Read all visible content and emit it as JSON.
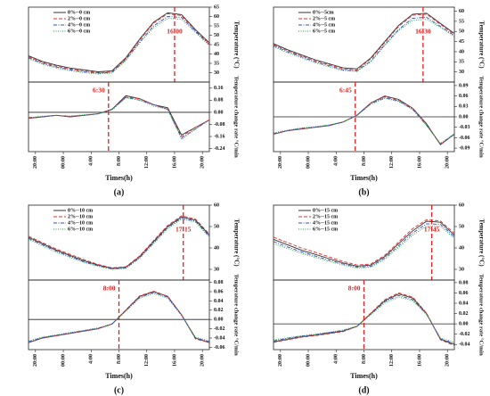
{
  "chart_data": [
    {
      "type": "line",
      "xlim": [
        -1,
        25
      ],
      "x": [
        -1,
        1,
        3,
        5,
        7,
        9,
        11,
        13,
        15,
        17,
        19,
        21,
        23,
        25
      ],
      "ylim": [
        25,
        65
      ],
      "yticks": [
        30,
        35,
        40,
        45,
        50,
        55,
        60,
        65
      ],
      "ylabel": "Temperature (°C)",
      "annotations": [
        {
          "text": "16:00",
          "x": 20
        }
      ],
      "series": [
        {
          "name": "0%--0 cm",
          "color": "#333333",
          "dash": "solid",
          "values": [
            39,
            36,
            34,
            32.5,
            31.5,
            30.5,
            31,
            38,
            48,
            57,
            62,
            61,
            53,
            46
          ]
        },
        {
          "name": "2%--0 cm",
          "color": "#e03030",
          "dash": "dashed",
          "values": [
            38.5,
            35.5,
            33.5,
            32,
            31,
            30,
            30.5,
            37.5,
            47.5,
            56.5,
            61.5,
            60.5,
            52.5,
            45.5
          ]
        },
        {
          "name": "4%--0 cm",
          "color": "#3050c0",
          "dash": "dashdot",
          "values": [
            38,
            35,
            33,
            31.5,
            30.5,
            29.7,
            30.2,
            37,
            46.5,
            55,
            60,
            59.5,
            52,
            45
          ]
        },
        {
          "name": "6%--0 cm",
          "color": "#20a040",
          "dash": "dotted",
          "values": [
            37.5,
            34.5,
            32.5,
            31,
            30,
            29.3,
            29.8,
            36.5,
            46,
            54,
            59,
            58.5,
            51.5,
            44.5
          ]
        }
      ]
    },
    {
      "type": "line",
      "xlim": [
        -1,
        25
      ],
      "x": [
        -1,
        1,
        3,
        5,
        7,
        9,
        11,
        13,
        15,
        17,
        19,
        21,
        23,
        25
      ],
      "ylim": [
        -0.26,
        0.2
      ],
      "yticks": [
        -0.24,
        -0.16,
        -0.08,
        {
          "value": 0,
          "label": "0.00"
        },
        0.08,
        0.16
      ],
      "ylabel": "Temperature change rate °C/min",
      "xticks": [
        {
          "value": 0,
          "label": "20:00"
        },
        {
          "value": 4,
          "label": "00:00"
        },
        {
          "value": 8,
          "label": "4:00"
        },
        {
          "value": 12,
          "label": "8:00"
        },
        {
          "value": 16,
          "label": "12:00"
        },
        {
          "value": 20,
          "label": "16:00"
        },
        {
          "value": 24,
          "label": "20:00"
        }
      ],
      "xlabel": "Times(h)",
      "panel_label": "(a)",
      "annotations": [
        {
          "text": "6:30",
          "x": 10.5
        }
      ],
      "series": [
        {
          "color": "#333333",
          "dash": "solid",
          "values": [
            -0.04,
            -0.03,
            -0.02,
            -0.03,
            -0.02,
            -0.01,
            0.02,
            0.11,
            0.09,
            0.05,
            0.03,
            -0.15,
            -0.1,
            -0.05
          ]
        },
        {
          "color": "#e03030",
          "dash": "dashed",
          "values": [
            -0.04,
            -0.03,
            -0.02,
            -0.03,
            -0.02,
            -0.01,
            0.02,
            0.1,
            0.09,
            0.05,
            0.02,
            -0.16,
            -0.1,
            -0.05
          ]
        },
        {
          "color": "#3050c0",
          "dash": "dashdot",
          "values": [
            -0.035,
            -0.03,
            -0.02,
            -0.025,
            -0.02,
            -0.01,
            0.02,
            0.1,
            0.08,
            0.05,
            0.02,
            -0.17,
            -0.11,
            -0.05
          ]
        },
        {
          "color": "#20a040",
          "dash": "dotted",
          "values": [
            -0.035,
            -0.025,
            -0.02,
            -0.025,
            -0.015,
            -0.01,
            0.015,
            0.095,
            0.08,
            0.04,
            0.02,
            -0.18,
            -0.11,
            -0.05
          ]
        }
      ]
    },
    {
      "type": "line",
      "xlim": [
        -1,
        25
      ],
      "x": [
        -1,
        1,
        3,
        5,
        7,
        9,
        11,
        13,
        15,
        17,
        19,
        21,
        23,
        25
      ],
      "ylim": [
        25,
        62
      ],
      "yticks": [
        30,
        35,
        40,
        45,
        50,
        55,
        60
      ],
      "ylabel": "Temperature (°C)",
      "annotations": [
        {
          "text": "16:30",
          "x": 20.5
        }
      ],
      "series": [
        {
          "name": "0%--5cm",
          "color": "#333333",
          "dash": "solid",
          "values": [
            44,
            41,
            38.5,
            36,
            34,
            32,
            31.5,
            37,
            45,
            53,
            58.5,
            59,
            54,
            49
          ]
        },
        {
          "name": "2%--5 cm",
          "color": "#e03030",
          "dash": "dashed",
          "values": [
            43.5,
            40.5,
            38,
            35.5,
            33.5,
            31.5,
            31,
            36.5,
            44.5,
            52.5,
            58,
            58.5,
            53.5,
            48.5
          ]
        },
        {
          "name": "4%--5 cm",
          "color": "#3050c0",
          "dash": "dashdot",
          "values": [
            43,
            40,
            37.5,
            35,
            33,
            31,
            30.5,
            35.5,
            43.5,
            51,
            56.5,
            57,
            52.5,
            48
          ]
        },
        {
          "name": "6%--5 cm",
          "color": "#20a040",
          "dash": "dotted",
          "values": [
            42.5,
            39.5,
            37,
            34.5,
            32.5,
            30.7,
            30.2,
            35,
            43,
            50.5,
            55.5,
            56,
            52,
            47.5
          ]
        }
      ]
    },
    {
      "type": "line",
      "xlim": [
        -1,
        25
      ],
      "x": [
        -1,
        1,
        3,
        5,
        7,
        9,
        11,
        13,
        15,
        17,
        19,
        21,
        23,
        25
      ],
      "ylim": [
        -0.1,
        0.1
      ],
      "yticks": [
        -0.09,
        -0.06,
        -0.03,
        {
          "value": 0,
          "label": "0.00"
        },
        0.03,
        0.06,
        0.09
      ],
      "ylabel": "Temperature change rate °C/min",
      "xticks": [
        {
          "value": 0,
          "label": "20:00"
        },
        {
          "value": 4,
          "label": "00:00"
        },
        {
          "value": 8,
          "label": "4:00"
        },
        {
          "value": 12,
          "label": "8:00"
        },
        {
          "value": 16,
          "label": "12:00"
        },
        {
          "value": 20,
          "label": "16:00"
        },
        {
          "value": 24,
          "label": "20:00"
        }
      ],
      "xlabel": "Times(h)",
      "panel_label": "(b)",
      "annotations": [
        {
          "text": "6:45",
          "x": 10.75
        }
      ],
      "series": [
        {
          "color": "#333333",
          "dash": "solid",
          "values": [
            -0.05,
            -0.04,
            -0.035,
            -0.03,
            -0.025,
            -0.015,
            0.005,
            0.04,
            0.06,
            0.05,
            0.025,
            -0.02,
            -0.08,
            -0.05
          ]
        },
        {
          "color": "#e03030",
          "dash": "dashed",
          "values": [
            -0.05,
            -0.04,
            -0.035,
            -0.03,
            -0.025,
            -0.015,
            0.005,
            0.04,
            0.058,
            0.048,
            0.024,
            -0.022,
            -0.08,
            -0.05
          ]
        },
        {
          "color": "#3050c0",
          "dash": "dashdot",
          "values": [
            -0.048,
            -0.04,
            -0.033,
            -0.03,
            -0.024,
            -0.015,
            0.004,
            0.038,
            0.055,
            0.046,
            0.022,
            -0.024,
            -0.078,
            -0.05
          ]
        },
        {
          "color": "#20a040",
          "dash": "dotted",
          "values": [
            -0.046,
            -0.038,
            -0.032,
            -0.028,
            -0.023,
            -0.014,
            0.004,
            0.036,
            0.053,
            0.044,
            0.02,
            -0.025,
            -0.076,
            -0.048
          ]
        }
      ]
    },
    {
      "type": "line",
      "xlim": [
        -1,
        25
      ],
      "x": [
        -1,
        1,
        3,
        5,
        7,
        9,
        11,
        13,
        15,
        17,
        19,
        21,
        23,
        25
      ],
      "ylim": [
        25,
        60
      ],
      "yticks": [
        30,
        40,
        50,
        60
      ],
      "ylabel": "Temperature (°C)",
      "annotations": [
        {
          "text": "17:15",
          "x": 21.25
        }
      ],
      "series": [
        {
          "name": "0%--10 cm",
          "color": "#333333",
          "dash": "solid",
          "values": [
            45,
            42,
            39,
            36.5,
            34,
            32,
            30.5,
            31,
            36,
            43,
            50,
            54.5,
            53,
            46
          ]
        },
        {
          "name": "2%--10 cm",
          "color": "#e03030",
          "dash": "dashed",
          "values": [
            45.5,
            42.5,
            39.5,
            37,
            34.5,
            32.3,
            30.7,
            31.2,
            36.3,
            43.5,
            50.5,
            55,
            53.5,
            46.5
          ]
        },
        {
          "name": "4%--10 cm",
          "color": "#3050c0",
          "dash": "dashdot",
          "values": [
            44.5,
            41.5,
            38.5,
            36,
            33.5,
            31.7,
            30.2,
            30.7,
            35.5,
            42.5,
            49.5,
            54,
            52.5,
            45.5
          ]
        },
        {
          "name": "6%--10 cm",
          "color": "#20a040",
          "dash": "dotted",
          "values": [
            44,
            41,
            38,
            35.5,
            33.2,
            31.4,
            30,
            30.4,
            35.2,
            42,
            49,
            53.5,
            52,
            45
          ]
        }
      ]
    },
    {
      "type": "line",
      "xlim": [
        -1,
        25
      ],
      "x": [
        -1,
        1,
        3,
        5,
        7,
        9,
        11,
        13,
        15,
        17,
        19,
        21,
        23,
        25
      ],
      "ylim": [
        -0.065,
        0.085
      ],
      "yticks": [
        -0.06,
        -0.04,
        -0.02,
        {
          "value": 0,
          "label": "0.00"
        },
        0.02,
        0.04,
        0.06,
        0.08
      ],
      "ylabel": "Temperature change rate °C/min",
      "xticks": [
        {
          "value": 0,
          "label": "20:00"
        },
        {
          "value": 4,
          "label": "00:00"
        },
        {
          "value": 8,
          "label": "4:00"
        },
        {
          "value": 12,
          "label": "8:00"
        },
        {
          "value": 16,
          "label": "12:00"
        },
        {
          "value": 20,
          "label": "16:00"
        },
        {
          "value": 24,
          "label": "20:00"
        }
      ],
      "xlabel": "Times(h)",
      "panel_label": "(c)",
      "annotations": [
        {
          "text": "8:00",
          "x": 12
        }
      ],
      "series": [
        {
          "color": "#333333",
          "dash": "solid",
          "values": [
            -0.05,
            -0.04,
            -0.035,
            -0.03,
            -0.025,
            -0.02,
            -0.01,
            0.02,
            0.05,
            0.06,
            0.05,
            0.01,
            -0.04,
            -0.05
          ]
        },
        {
          "color": "#e03030",
          "dash": "dashed",
          "values": [
            -0.05,
            -0.04,
            -0.035,
            -0.03,
            -0.025,
            -0.02,
            -0.01,
            0.021,
            0.051,
            0.061,
            0.05,
            0.01,
            -0.042,
            -0.05
          ]
        },
        {
          "color": "#3050c0",
          "dash": "dashdot",
          "values": [
            -0.048,
            -0.039,
            -0.034,
            -0.029,
            -0.024,
            -0.019,
            -0.01,
            0.019,
            0.048,
            0.058,
            0.048,
            0.009,
            -0.04,
            -0.048
          ]
        },
        {
          "color": "#20a040",
          "dash": "dotted",
          "values": [
            -0.046,
            -0.038,
            -0.033,
            -0.028,
            -0.023,
            -0.018,
            -0.009,
            0.018,
            0.046,
            0.056,
            0.046,
            0.008,
            -0.038,
            -0.046
          ]
        }
      ]
    },
    {
      "type": "line",
      "xlim": [
        -1,
        25
      ],
      "x": [
        -1,
        1,
        3,
        5,
        7,
        9,
        11,
        13,
        15,
        17,
        19,
        21,
        23,
        25
      ],
      "ylim": [
        25,
        60
      ],
      "yticks": [
        30,
        40,
        50,
        60
      ],
      "ylabel": "Temperature (°C)",
      "annotations": [
        {
          "text": "17:45",
          "x": 21.75
        }
      ],
      "series": [
        {
          "name": "0%--15 cm",
          "color": "#333333",
          "dash": "solid",
          "values": [
            44,
            41.5,
            39,
            37,
            35,
            33,
            31.5,
            32,
            36,
            42,
            48,
            52.5,
            52,
            46
          ]
        },
        {
          "name": "2%--15 cm",
          "color": "#e03030",
          "dash": "dashed",
          "values": [
            45,
            42.5,
            40,
            38,
            35.8,
            33.7,
            32,
            32.5,
            36.6,
            42.8,
            49,
            53.2,
            52.6,
            46.8
          ]
        },
        {
          "name": "4%--15 cm",
          "color": "#3050c0",
          "dash": "dashdot",
          "values": [
            43,
            40.5,
            38.2,
            36.2,
            34.3,
            32.5,
            31,
            31.4,
            35.3,
            41,
            47,
            51.3,
            51,
            45.2
          ]
        },
        {
          "name": "6%--15 cm",
          "color": "#20a040",
          "dash": "dotted",
          "values": [
            42,
            39.8,
            37.5,
            35.6,
            33.7,
            32,
            30.6,
            31,
            34.7,
            40.2,
            46,
            50.3,
            50.2,
            44.5
          ]
        }
      ]
    },
    {
      "type": "line",
      "xlim": [
        -1,
        25
      ],
      "x": [
        -1,
        1,
        3,
        5,
        7,
        9,
        11,
        13,
        15,
        17,
        19,
        21,
        23,
        25
      ],
      "ylim": [
        -0.05,
        0.085
      ],
      "yticks": [
        -0.04,
        -0.02,
        {
          "value": 0,
          "label": "0.00"
        },
        0.02,
        0.04,
        0.06,
        0.08
      ],
      "ylabel": "Temperature change rate °C/min",
      "xticks": [
        {
          "value": 0,
          "label": "20:00"
        },
        {
          "value": 4,
          "label": "00:00"
        },
        {
          "value": 8,
          "label": "4:00"
        },
        {
          "value": 12,
          "label": "8:00"
        },
        {
          "value": 16,
          "label": "12:00"
        },
        {
          "value": 20,
          "label": "16:00"
        },
        {
          "value": 24,
          "label": "20:00"
        }
      ],
      "xlabel": "Times(h)",
      "panel_label": "(d)",
      "annotations": [
        {
          "text": "8:00",
          "x": 12
        }
      ],
      "series": [
        {
          "color": "#333333",
          "dash": "solid",
          "values": [
            -0.035,
            -0.03,
            -0.025,
            -0.022,
            -0.018,
            -0.014,
            -0.005,
            0.02,
            0.045,
            0.058,
            0.05,
            0.02,
            -0.03,
            -0.04
          ]
        },
        {
          "color": "#e03030",
          "dash": "dashed",
          "values": [
            -0.036,
            -0.031,
            -0.026,
            -0.023,
            -0.019,
            -0.015,
            -0.005,
            0.021,
            0.047,
            0.06,
            0.052,
            0.021,
            -0.031,
            -0.042
          ]
        },
        {
          "color": "#3050c0",
          "dash": "dashdot",
          "values": [
            -0.033,
            -0.028,
            -0.024,
            -0.021,
            -0.017,
            -0.013,
            -0.005,
            0.019,
            0.043,
            0.055,
            0.047,
            0.019,
            -0.029,
            -0.038
          ]
        },
        {
          "color": "#20a040",
          "dash": "dotted",
          "values": [
            -0.031,
            -0.027,
            -0.023,
            -0.02,
            -0.016,
            -0.012,
            -0.004,
            0.018,
            0.04,
            0.052,
            0.045,
            0.018,
            -0.027,
            -0.036
          ]
        }
      ]
    }
  ]
}
